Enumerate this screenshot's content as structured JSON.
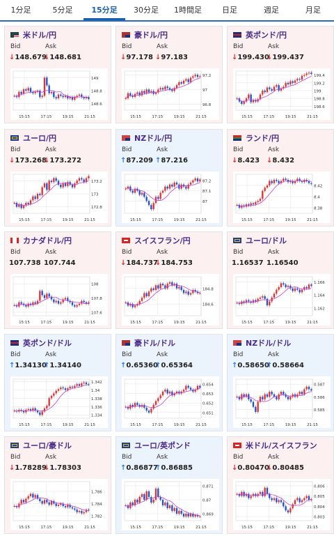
{
  "tabs": [
    {
      "label": "1分足",
      "active": false
    },
    {
      "label": "5分足",
      "active": false
    },
    {
      "label": "15分足",
      "active": true
    },
    {
      "label": "30分足",
      "active": false
    },
    {
      "label": "1時間足",
      "active": false
    },
    {
      "label": "日足",
      "active": false
    },
    {
      "label": "週足",
      "active": false
    },
    {
      "label": "月足",
      "active": false
    }
  ],
  "bid_label": "Bid",
  "ask_label": "Ask",
  "x_ticks": [
    "15:15",
    "17:15",
    "19:15",
    "21:15"
  ],
  "colors": {
    "up": "#e03030",
    "down": "#2050d0",
    "ma": "#c040d0",
    "grid": "#e6e6e6",
    "bg_red": "#fdf0f0",
    "bg_blue": "#ebf4fc",
    "active_tab": "#1b5fb0",
    "pair_text": "#4a2a8a"
  },
  "cards": [
    {
      "pair": "米ドル/円",
      "flag": "us",
      "direction": "down",
      "bg": "red",
      "bid": "148.679",
      "ask": "148.681",
      "yticks": [
        "149",
        "148.8",
        "148.6"
      ],
      "ylim": [
        148.5,
        149.1
      ],
      "close": [
        148.72,
        148.7,
        148.78,
        148.75,
        148.82,
        148.8,
        148.84,
        148.78,
        148.76,
        148.78,
        148.8,
        148.7,
        148.72,
        149.0,
        148.88,
        148.76,
        148.78,
        148.7,
        148.68,
        148.74,
        148.72,
        148.7,
        148.72,
        148.68,
        148.7,
        148.66,
        148.7,
        148.72,
        148.74,
        148.7,
        148.68,
        148.7,
        148.67
      ]
    },
    {
      "pair": "豪ドル/円",
      "flag": "au",
      "direction": "down",
      "bg": "red",
      "bid": "97.178",
      "ask": "97.183",
      "yticks": [
        "97.2",
        "97",
        "96.8"
      ],
      "ylim": [
        96.72,
        97.25
      ],
      "close": [
        96.88,
        96.95,
        96.92,
        96.9,
        96.94,
        96.96,
        96.92,
        96.98,
        96.95,
        97.0,
        96.96,
        96.98,
        96.94,
        96.96,
        97.0,
        97.02,
        97.0,
        97.04,
        97.02,
        97.0,
        96.98,
        97.02,
        97.06,
        97.1,
        97.08,
        97.12,
        97.14,
        97.1,
        97.16,
        97.18,
        97.2,
        97.17,
        97.18
      ]
    },
    {
      "pair": "英ポンド/円",
      "flag": "gb",
      "direction": "down",
      "bg": "red",
      "bid": "199.430",
      "ask": "199.437",
      "yticks": [
        "199.4",
        "199.2",
        "199",
        "198.8",
        "198.6"
      ],
      "ylim": [
        198.5,
        199.5
      ],
      "close": [
        198.8,
        198.72,
        198.66,
        198.72,
        198.8,
        198.9,
        198.7,
        198.76,
        198.72,
        198.78,
        198.9,
        199.0,
        198.96,
        199.08,
        199.04,
        199.0,
        199.1,
        199.14,
        199.0,
        199.06,
        199.1,
        199.2,
        199.16,
        199.24,
        199.2,
        199.26,
        199.3,
        199.28,
        199.38,
        199.4,
        199.44,
        199.46,
        199.43
      ]
    },
    {
      "pair": "ユーロ/円",
      "flag": "eu",
      "direction": "down",
      "bg": "red",
      "bid": "173.268",
      "ask": "173.272",
      "yticks": [
        "173.2",
        "173",
        "172.8"
      ],
      "ylim": [
        172.7,
        173.3
      ],
      "close": [
        172.86,
        172.8,
        172.84,
        172.78,
        172.82,
        172.86,
        172.84,
        172.9,
        172.96,
        172.92,
        173.0,
        172.98,
        173.1,
        173.16,
        173.06,
        173.2,
        173.18,
        173.24,
        173.2,
        173.14,
        173.1,
        173.16,
        173.12,
        173.18,
        173.14,
        173.1,
        173.16,
        173.2,
        173.24,
        173.22,
        173.18,
        173.24,
        173.27
      ]
    },
    {
      "pair": "NZドル/円",
      "flag": "nz",
      "direction": "up",
      "bg": "blue",
      "bid": "87.209",
      "ask": "87.216",
      "yticks": [
        "87.2",
        "87.1",
        "87"
      ],
      "ylim": [
        86.88,
        87.26
      ],
      "close": [
        87.12,
        87.14,
        87.1,
        87.08,
        87.12,
        87.1,
        87.06,
        87.08,
        87.04,
        87.0,
        86.96,
        86.92,
        86.98,
        87.04,
        87.02,
        87.08,
        87.1,
        87.14,
        87.12,
        87.16,
        87.14,
        87.18,
        87.16,
        87.12,
        87.16,
        87.14,
        87.12,
        87.16,
        87.18,
        87.2,
        87.22,
        87.19,
        87.21
      ]
    },
    {
      "pair": "ランド/円",
      "flag": "za",
      "direction": "down",
      "bg": "red",
      "bid": "8.423",
      "ask": "8.432",
      "yticks": [
        "8.42",
        "8.4",
        "8.38"
      ],
      "ylim": [
        8.37,
        8.44
      ],
      "close": [
        8.385,
        8.38,
        8.384,
        8.382,
        8.386,
        8.384,
        8.388,
        8.386,
        8.39,
        8.392,
        8.396,
        8.41,
        8.416,
        8.42,
        8.428,
        8.424,
        8.43,
        8.428,
        8.424,
        8.428,
        8.432,
        8.43,
        8.426,
        8.428,
        8.424,
        8.428,
        8.432,
        8.428,
        8.426,
        8.43,
        8.428,
        8.424,
        8.423
      ]
    },
    {
      "pair": "カナダドル/円",
      "flag": "ca",
      "direction": "",
      "bg": "red",
      "bid": "107.738",
      "ask": "107.744",
      "yticks": [
        "108",
        "107.8",
        "107.6"
      ],
      "ylim": [
        107.55,
        108.1
      ],
      "close": [
        107.7,
        107.68,
        107.74,
        107.72,
        107.7,
        107.68,
        107.72,
        107.7,
        107.74,
        107.72,
        107.76,
        107.9,
        107.84,
        107.8,
        107.86,
        107.82,
        107.78,
        107.74,
        107.76,
        107.72,
        107.74,
        107.78,
        107.8,
        107.76,
        107.74,
        107.7,
        107.68,
        107.7,
        107.72,
        107.76,
        107.74,
        107.72,
        107.74
      ]
    },
    {
      "pair": "スイスフラン/円",
      "flag": "ch",
      "direction": "down",
      "bg": "red",
      "bid": "184.737",
      "ask": "184.753",
      "yticks": [
        "184.8",
        "184.6"
      ],
      "ylim": [
        184.45,
        184.95
      ],
      "close": [
        184.62,
        184.58,
        184.6,
        184.56,
        184.58,
        184.6,
        184.64,
        184.68,
        184.74,
        184.7,
        184.76,
        184.8,
        184.78,
        184.84,
        184.8,
        184.86,
        184.84,
        184.8,
        184.86,
        184.88,
        184.84,
        184.86,
        184.8,
        184.82,
        184.78,
        184.74,
        184.76,
        184.72,
        184.74,
        184.78,
        184.76,
        184.74,
        184.74
      ]
    },
    {
      "pair": "ユーロ/ドル",
      "flag": "eu",
      "direction": "",
      "bg": "red",
      "bid": "1.16537",
      "ask": "1.16540",
      "yticks": [
        "1.166",
        "1.164",
        "1.162"
      ],
      "ylim": [
        1.1608,
        1.1668
      ],
      "close": [
        1.1628,
        1.1626,
        1.163,
        1.1628,
        1.1632,
        1.163,
        1.1628,
        1.1632,
        1.163,
        1.1634,
        1.1636,
        1.1638,
        1.1634,
        1.1624,
        1.163,
        1.1636,
        1.1642,
        1.1648,
        1.1652,
        1.1658,
        1.1656,
        1.1652,
        1.1654,
        1.165,
        1.1646,
        1.165,
        1.1648,
        1.1644,
        1.1648,
        1.1652,
        1.165,
        1.1656,
        1.1654
      ]
    },
    {
      "pair": "英ポンド/ドル",
      "flag": "gb",
      "direction": "up",
      "bg": "blue",
      "bid": "1.34130",
      "ask": "1.34140",
      "yticks": [
        "1.342",
        "1.34",
        "1.338",
        "1.336",
        "1.334"
      ],
      "ylim": [
        1.3332,
        1.3426
      ],
      "close": [
        1.335,
        1.3348,
        1.3352,
        1.335,
        1.3346,
        1.3352,
        1.3354,
        1.335,
        1.3356,
        1.335,
        1.3346,
        1.334,
        1.3348,
        1.3356,
        1.3362,
        1.338,
        1.3386,
        1.3392,
        1.3398,
        1.3402,
        1.3406,
        1.3404,
        1.34,
        1.3404,
        1.3408,
        1.3406,
        1.341,
        1.3414,
        1.341,
        1.3416,
        1.3418,
        1.3414,
        1.3413
      ]
    },
    {
      "pair": "豪ドル/ドル",
      "flag": "au",
      "direction": "up",
      "bg": "blue",
      "bid": "0.65360",
      "ask": "0.65364",
      "yticks": [
        "0.654",
        "0.653",
        "0.652",
        "0.651"
      ],
      "ylim": [
        0.6504,
        0.6545
      ],
      "close": [
        0.6516,
        0.6514,
        0.6518,
        0.6516,
        0.652,
        0.6518,
        0.6516,
        0.6518,
        0.6515,
        0.6512,
        0.651,
        0.6514,
        0.6518,
        0.6522,
        0.6525,
        0.6528,
        0.6532,
        0.6534,
        0.653,
        0.6532,
        0.6528,
        0.653,
        0.6532,
        0.653,
        0.6532,
        0.6534,
        0.6538,
        0.6536,
        0.6534,
        0.6532,
        0.6534,
        0.6538,
        0.6536
      ]
    },
    {
      "pair": "NZドル/ドル",
      "flag": "nz",
      "direction": "up",
      "bg": "blue",
      "bid": "0.58650",
      "ask": "0.58664",
      "yticks": [
        "0.587",
        "0.586",
        "0.585"
      ],
      "ylim": [
        0.5843,
        0.5874
      ],
      "close": [
        0.586,
        0.5858,
        0.5862,
        0.586,
        0.5862,
        0.5858,
        0.5856,
        0.5852,
        0.5848,
        0.5856,
        0.586,
        0.5858,
        0.5862,
        0.586,
        0.5864,
        0.5862,
        0.586,
        0.5858,
        0.5862,
        0.5864,
        0.5862,
        0.586,
        0.5858,
        0.586,
        0.5862,
        0.586,
        0.5862,
        0.5864,
        0.5862,
        0.5866,
        0.5868,
        0.5866,
        0.5865
      ]
    },
    {
      "pair": "ユーロ/豪ドル",
      "flag": "eu",
      "direction": "down",
      "bg": "red",
      "bid": "1.78289",
      "ask": "1.78303",
      "yticks": [
        "1.786",
        "1.784",
        "1.782"
      ],
      "ylim": [
        1.7812,
        1.7876
      ],
      "close": [
        1.7836,
        1.7834,
        1.784,
        1.7846,
        1.7842,
        1.7848,
        1.7852,
        1.7856,
        1.785,
        1.7854,
        1.7848,
        1.7844,
        1.784,
        1.7846,
        1.7842,
        1.7838,
        1.7844,
        1.784,
        1.7836,
        1.7838,
        1.784,
        1.7836,
        1.7834,
        1.7838,
        1.7834,
        1.7832,
        1.783,
        1.7826,
        1.7828,
        1.7824,
        1.7826,
        1.783,
        1.7829
      ]
    },
    {
      "pair": "ユーロ/英ポンド",
      "flag": "eu",
      "direction": "up",
      "bg": "blue",
      "bid": "0.86877",
      "ask": "0.86885",
      "yticks": [
        "0.871",
        "0.87",
        "0.869"
      ],
      "ylim": [
        0.8685,
        0.8713
      ],
      "close": [
        0.8696,
        0.8694,
        0.8698,
        0.8696,
        0.87,
        0.8698,
        0.8702,
        0.8704,
        0.87,
        0.8706,
        0.8702,
        0.8698,
        0.87,
        0.8708,
        0.8702,
        0.87,
        0.8696,
        0.8698,
        0.8694,
        0.8696,
        0.8692,
        0.8694,
        0.869,
        0.8692,
        0.869,
        0.8688,
        0.869,
        0.8688,
        0.869,
        0.8688,
        0.8689,
        0.8688,
        0.8688
      ]
    },
    {
      "pair": "米ドル/スイスフラン",
      "flag": "ch",
      "direction": "down",
      "bg": "red",
      "bid": "0.80470",
      "ask": "0.80485",
      "yticks": [
        "0.806",
        "0.805",
        "0.804",
        "0.803"
      ],
      "ylim": [
        0.8026,
        0.8064
      ],
      "close": [
        0.8052,
        0.805,
        0.8054,
        0.805,
        0.8052,
        0.8048,
        0.805,
        0.8052,
        0.805,
        0.8052,
        0.8054,
        0.805,
        0.8058,
        0.8052,
        0.8048,
        0.8046,
        0.8048,
        0.8044,
        0.8046,
        0.8044,
        0.804,
        0.8036,
        0.8034,
        0.8038,
        0.8042,
        0.8046,
        0.8048,
        0.8044,
        0.8046,
        0.8048,
        0.805,
        0.8046,
        0.8047
      ]
    }
  ]
}
